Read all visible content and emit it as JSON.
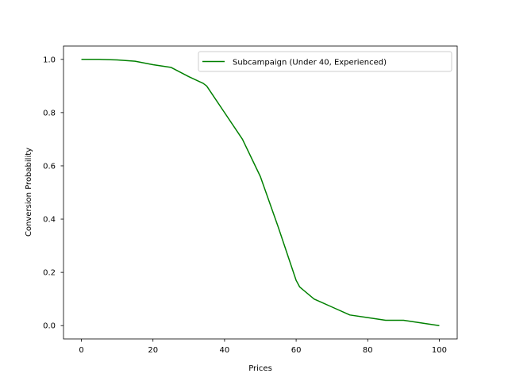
{
  "chart_data": {
    "type": "line",
    "xlabel": "Prices",
    "ylabel": "Conversion Probability",
    "xlim": [
      -5,
      105
    ],
    "ylim": [
      -0.05,
      1.05
    ],
    "xticks": [
      0,
      20,
      40,
      60,
      80,
      100
    ],
    "yticks": [
      0.0,
      0.2,
      0.4,
      0.6,
      0.8,
      1.0
    ],
    "xtick_labels": [
      "0",
      "20",
      "40",
      "60",
      "80",
      "100"
    ],
    "ytick_labels": [
      "0.0",
      "0.2",
      "0.4",
      "0.6",
      "0.8",
      "1.0"
    ],
    "grid": false,
    "legend_position": "top-right",
    "series": [
      {
        "name": "Subcampaign (Under 40, Experienced)",
        "color": "#008000",
        "x": [
          0,
          5,
          10,
          15,
          20,
          25,
          30,
          34,
          35,
          40,
          45,
          50,
          55,
          60,
          61,
          65,
          70,
          75,
          80,
          85,
          90,
          95,
          100
        ],
        "y": [
          1.0,
          1.0,
          0.998,
          0.993,
          0.98,
          0.97,
          0.935,
          0.91,
          0.9,
          0.8,
          0.7,
          0.56,
          0.37,
          0.17,
          0.145,
          0.1,
          0.07,
          0.04,
          0.03,
          0.02,
          0.02,
          0.01,
          0.0
        ]
      }
    ]
  }
}
